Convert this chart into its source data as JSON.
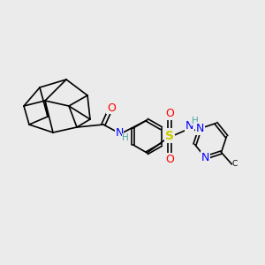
{
  "bg_color": "#ebebeb",
  "bond_color": "#000000",
  "fig_width": 3.0,
  "fig_height": 3.0,
  "dpi": 100,
  "atom_colors": {
    "O": "#ff0000",
    "N": "#0000ff",
    "S": "#cccc00",
    "H_label": "#4da6a6",
    "C": "#000000"
  },
  "font_size_atoms": 9,
  "font_size_small": 7.5,
  "line_width": 1.2
}
